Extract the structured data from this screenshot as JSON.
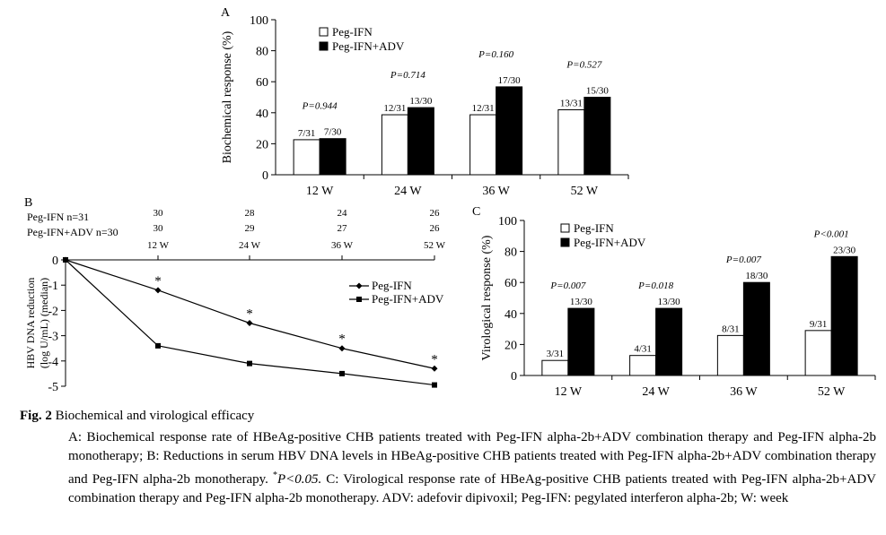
{
  "chart_data": [
    {
      "type": "bar",
      "panel": "A",
      "ylabel": "Biochemical response (%)",
      "ylim": [
        0,
        100
      ],
      "yticks": [
        0,
        20,
        40,
        60,
        80,
        100
      ],
      "categories": [
        "12 W",
        "24 W",
        "36 W",
        "52 W"
      ],
      "series": [
        {
          "name": "Peg-IFN",
          "color": "#ffffff",
          "values": [
            22.6,
            38.7,
            38.7,
            41.9
          ],
          "labels": [
            "7/31",
            "12/31",
            "12/31",
            "13/31"
          ]
        },
        {
          "name": "Peg-IFN+ADV",
          "color": "#000000",
          "values": [
            23.3,
            43.3,
            56.7,
            50.0
          ],
          "labels": [
            "7/30",
            "13/30",
            "17/30",
            "15/30"
          ]
        }
      ],
      "p_values": [
        "P=0.944",
        "P=0.714",
        "P=0.160",
        "P=0.527"
      ],
      "legend": "top-left"
    },
    {
      "type": "line",
      "panel": "B",
      "ylabel": "HBV DNA reduction",
      "ylabel2": "(log U/mL) (median)",
      "ylim": [
        -5,
        0
      ],
      "yticks": [
        0,
        -1,
        -2,
        -3,
        -4,
        -5
      ],
      "x": [
        "0",
        "12 W",
        "24 W",
        "36 W",
        "52 W"
      ],
      "series": [
        {
          "name": "Peg-IFN",
          "marker": "diamond",
          "values": [
            0,
            -1.2,
            -2.5,
            -3.5,
            -4.3
          ]
        },
        {
          "name": "Peg-IFN+ADV",
          "marker": "square",
          "values": [
            0,
            -3.4,
            -4.1,
            -4.5,
            -4.95
          ]
        }
      ],
      "significance": [
        "*",
        "*",
        "*",
        "*"
      ],
      "n_table": {
        "rows": [
          {
            "label": "Peg-IFN n=31",
            "values": [
              "30",
              "28",
              "24",
              "26"
            ]
          },
          {
            "label": "Peg-IFN+ADV n=30",
            "values": [
              "30",
              "29",
              "27",
              "26"
            ]
          }
        ],
        "times": [
          "12 W",
          "24 W",
          "36 W",
          "52 W"
        ]
      },
      "legend": "right"
    },
    {
      "type": "bar",
      "panel": "C",
      "ylabel": "Virological response (%)",
      "ylim": [
        0,
        100
      ],
      "yticks": [
        0,
        20,
        40,
        60,
        80,
        100
      ],
      "categories": [
        "12 W",
        "24 W",
        "36 W",
        "52 W"
      ],
      "series": [
        {
          "name": "Peg-IFN",
          "color": "#ffffff",
          "values": [
            9.7,
            12.9,
            25.8,
            29.0
          ],
          "labels": [
            "3/31",
            "4/31",
            "8/31",
            "9/31"
          ]
        },
        {
          "name": "Peg-IFN+ADV",
          "color": "#000000",
          "values": [
            43.3,
            43.3,
            60.0,
            76.7
          ],
          "labels": [
            "13/30",
            "13/30",
            "18/30",
            "23/30"
          ]
        }
      ],
      "p_values": [
        "P=0.007",
        "P=0.018",
        "P=0.007",
        "P<0.001"
      ],
      "legend": "top-left"
    }
  ],
  "caption": {
    "label": "Fig. 2",
    "title": "Biochemical and virological efficacy",
    "text1": "A: Biochemical response rate of HBeAg-positive CHB patients treated with Peg-IFN alpha-2b+ADV combination therapy and Peg-IFN alpha-2b monotherapy; B: Reductions in serum HBV DNA levels in HBeAg-positive CHB patients treated with Peg-IFN alpha-2b+ADV combination therapy and Peg-IFN alpha-2b monotherapy.",
    "sig_mark": "*",
    "sig_text": "P<0.05.",
    "text2": "C: Virological response rate of HBeAg-positive CHB patients treated with Peg-IFN alpha-2b+ADV combination therapy and Peg-IFN alpha-2b monotherapy. ADV: adefovir dipivoxil; Peg-IFN: pegylated interferon alpha-2b; W: week"
  }
}
